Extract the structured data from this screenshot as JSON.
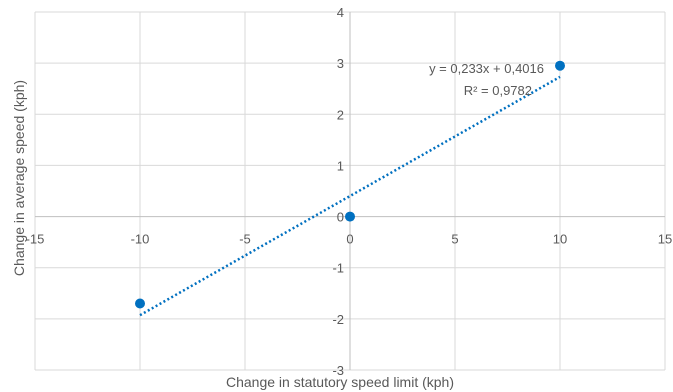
{
  "chart_data": {
    "type": "scatter",
    "xlabel": "Change in statutory speed limit (kph)",
    "ylabel": "Change in average speed (kph)",
    "xlim": [
      -15,
      15
    ],
    "ylim": [
      -3,
      4
    ],
    "xticks": [
      -15,
      -10,
      -5,
      0,
      5,
      10,
      15
    ],
    "yticks": [
      -3,
      -2,
      -1,
      0,
      1,
      2,
      3,
      4
    ],
    "xtick_labels": [
      "-15",
      "-10",
      "-5",
      "0",
      "5",
      "10",
      "15"
    ],
    "ytick_labels": [
      "-3",
      "-2",
      "-1",
      "0",
      "1",
      "2",
      "3",
      "4"
    ],
    "grid": true,
    "series": [
      {
        "points": [
          {
            "x": -10,
            "y": -1.7
          },
          {
            "x": 0,
            "y": 0
          },
          {
            "x": 10,
            "y": 2.95
          }
        ],
        "color": "#0070C0"
      }
    ],
    "trendline": {
      "type": "linear",
      "slope": 0.233,
      "intercept": 0.4016,
      "x_range": [
        -10,
        10
      ],
      "color": "#0070C0",
      "style": "dotted",
      "equation": "y = 0,233x + 0,4016",
      "r_squared": "R² = 0,9782"
    }
  }
}
